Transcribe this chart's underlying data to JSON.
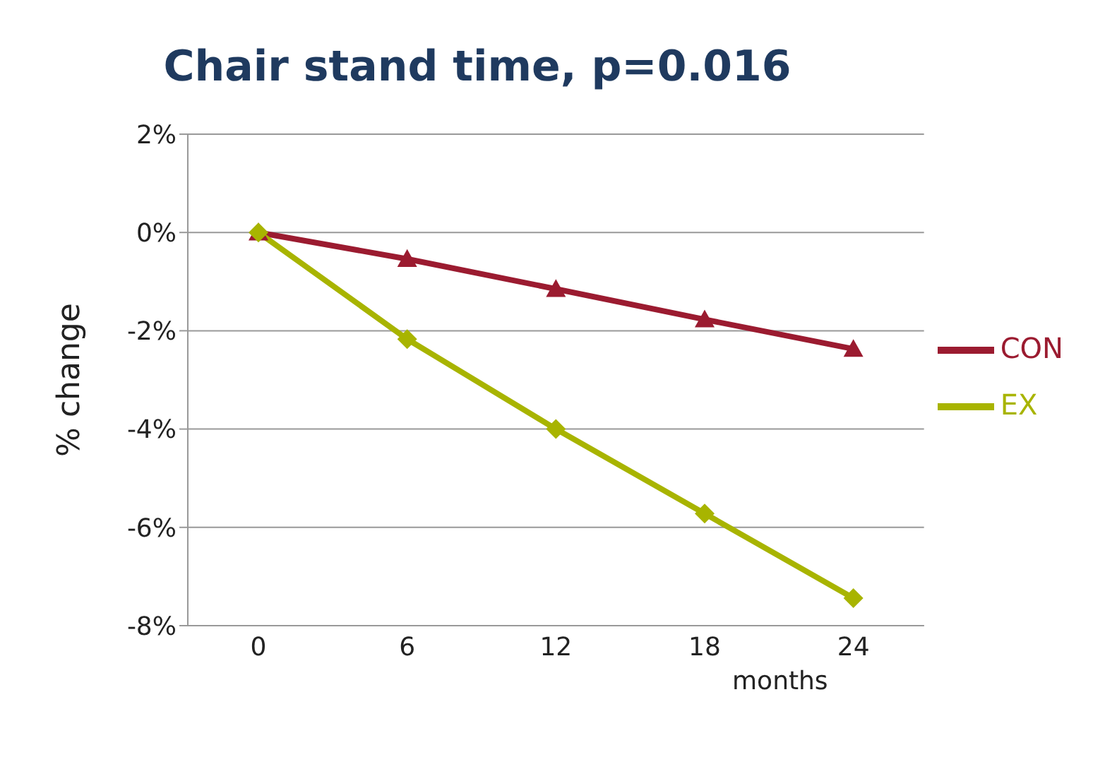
{
  "chart_data": {
    "type": "line",
    "title": "Chair stand time, p=0.016",
    "ylabel": "% change",
    "xlabel": "months",
    "categories": [
      "0",
      "6",
      "12",
      "18",
      "24"
    ],
    "series": [
      {
        "name": "CON",
        "color": "#9b1b30",
        "marker": "triangle",
        "values": [
          0,
          -0.54,
          -1.15,
          -1.77,
          -2.37
        ]
      },
      {
        "name": "EX",
        "color": "#a8b400",
        "marker": "diamond",
        "values": [
          0,
          -2.17,
          -4.0,
          -5.72,
          -7.44
        ]
      }
    ],
    "ylim": [
      -8,
      2
    ],
    "yticks": [
      {
        "value": -8,
        "label": "-8%"
      },
      {
        "value": -6,
        "label": "-6%"
      },
      {
        "value": -4,
        "label": "-4%"
      },
      {
        "value": -2,
        "label": "-2%"
      },
      {
        "value": 0,
        "label": "0%"
      },
      {
        "value": 2,
        "label": "2%"
      }
    ],
    "grid": "y",
    "legend": "right",
    "line_style": "solid"
  }
}
